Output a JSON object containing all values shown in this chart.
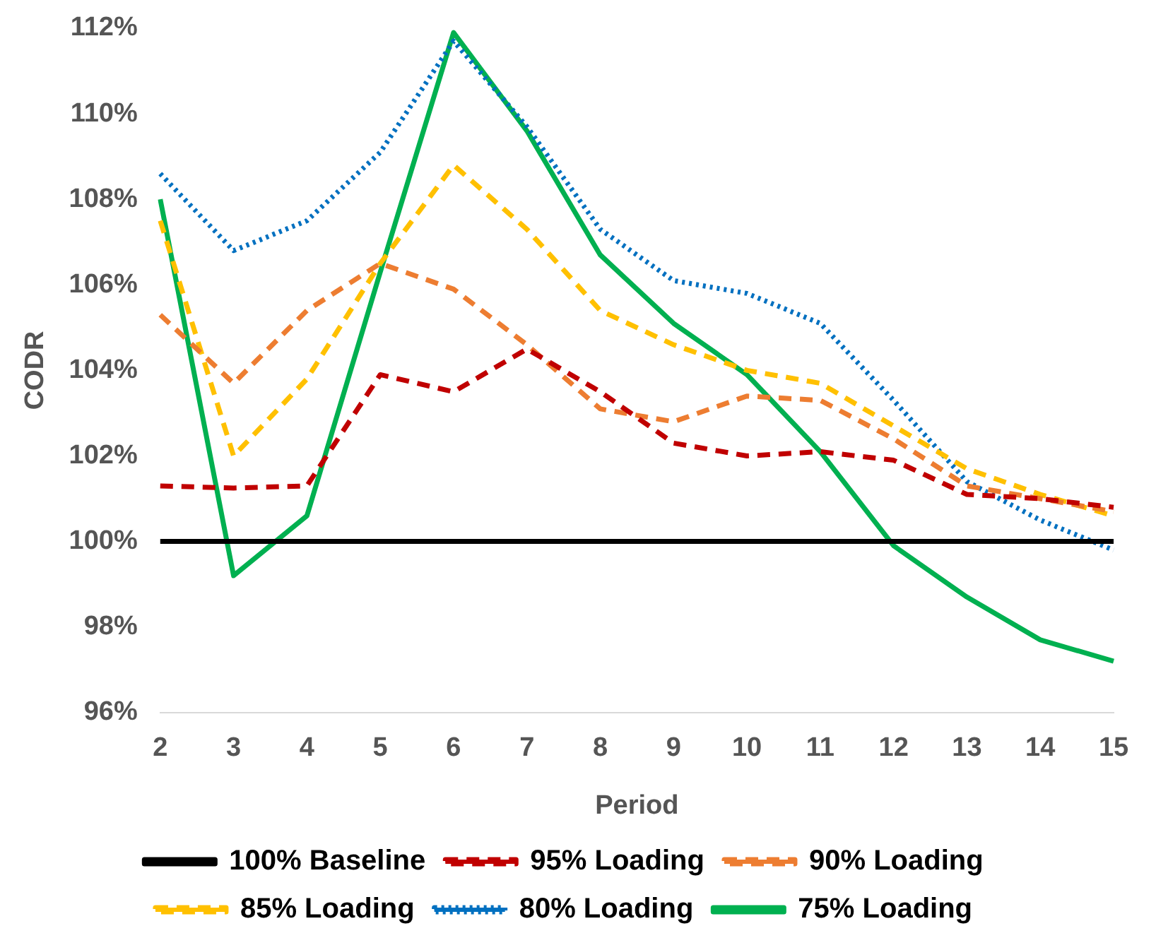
{
  "chart_data": {
    "type": "line",
    "xlabel": "Period",
    "ylabel": "CODR",
    "categories": [
      "2",
      "3",
      "4",
      "5",
      "6",
      "7",
      "8",
      "9",
      "10",
      "11",
      "12",
      "13",
      "14",
      "15"
    ],
    "series": [
      {
        "name": "100% Baseline",
        "color": "#000000",
        "line_style": "solid",
        "values": [
          100,
          100,
          100,
          100,
          100,
          100,
          100,
          100,
          100,
          100,
          100,
          100,
          100,
          100
        ]
      },
      {
        "name": "95% Loading",
        "color": "#c00000",
        "line_style": "dashed",
        "values": [
          101.3,
          101.25,
          101.3,
          103.9,
          103.5,
          104.5,
          103.5,
          102.3,
          102.0,
          102.1,
          101.9,
          101.1,
          101.0,
          100.8
        ]
      },
      {
        "name": "90% Loading",
        "color": "#ed7d31",
        "line_style": "dashed",
        "values": [
          105.3,
          103.7,
          105.4,
          106.5,
          105.9,
          104.6,
          103.1,
          102.8,
          103.4,
          103.3,
          102.4,
          101.3,
          101.0,
          100.7
        ]
      },
      {
        "name": "85% Loading",
        "color": "#ffc000",
        "line_style": "dashed",
        "values": [
          107.5,
          102.0,
          103.8,
          106.5,
          108.8,
          107.3,
          105.4,
          104.6,
          104.0,
          103.7,
          102.7,
          101.7,
          101.1,
          100.6
        ]
      },
      {
        "name": "80% Loading",
        "color": "#0070c0",
        "line_style": "dotted",
        "values": [
          108.6,
          106.8,
          107.5,
          109.1,
          111.7,
          109.7,
          107.3,
          106.1,
          105.8,
          105.1,
          103.3,
          101.4,
          100.5,
          99.8
        ]
      },
      {
        "name": "75% Loading",
        "color": "#00b050",
        "line_style": "solid",
        "values": [
          108.0,
          99.2,
          100.6,
          106.3,
          111.9,
          109.6,
          106.7,
          105.1,
          103.9,
          102.1,
          99.9,
          98.7,
          97.7,
          97.2
        ]
      }
    ],
    "ylim": [
      96,
      112
    ],
    "yticks": [
      {
        "value": 96,
        "label": "96%"
      },
      {
        "value": 98,
        "label": "98%"
      },
      {
        "value": 100,
        "label": "100%"
      },
      {
        "value": 102,
        "label": "102%"
      },
      {
        "value": 104,
        "label": "104%"
      },
      {
        "value": 106,
        "label": "106%"
      },
      {
        "value": 108,
        "label": "108%"
      },
      {
        "value": 110,
        "label": "110%"
      },
      {
        "value": 112,
        "label": "112%"
      }
    ],
    "grid": false,
    "legend": "bottom",
    "marker": "none"
  }
}
